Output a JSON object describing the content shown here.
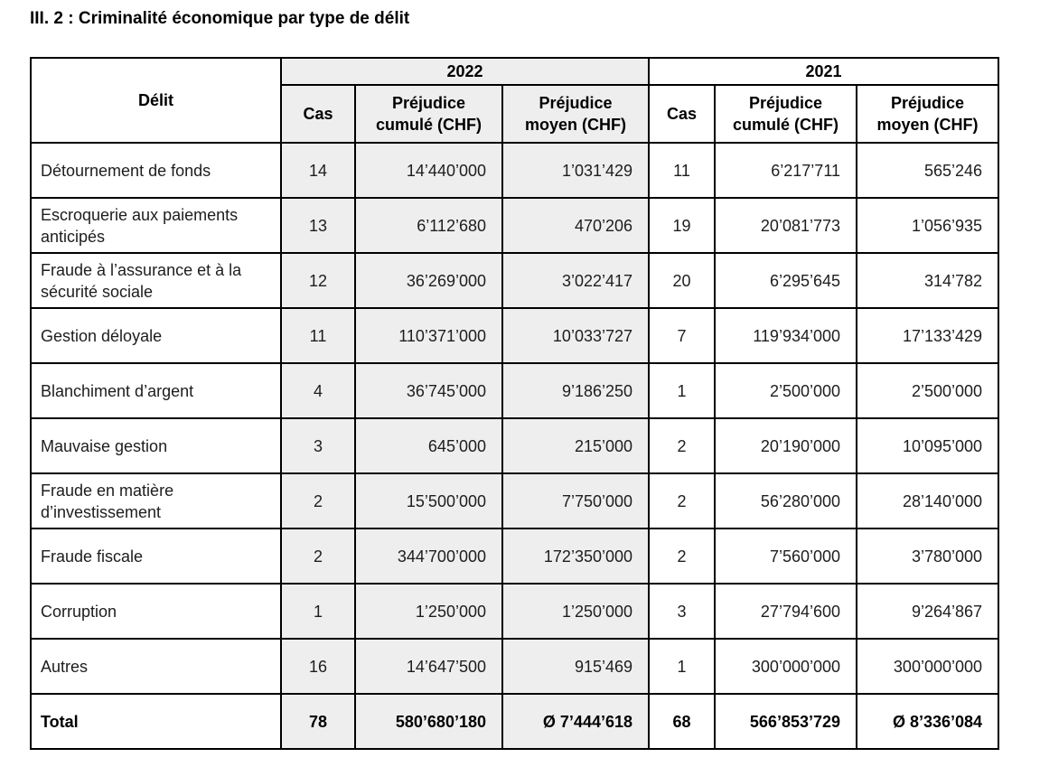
{
  "page": {
    "title": "III. 2 : Criminalité économique par type de délit"
  },
  "colors": {
    "shade": "#eeeeee",
    "border": "#000000",
    "text": "#1d1d1d"
  },
  "table": {
    "corner_header": "Délit",
    "groups": [
      {
        "year": "2022",
        "shaded": true,
        "subcolumns": [
          "Cas",
          "Préjudice cumulé (CHF)",
          "Préjudice moyen (CHF)"
        ]
      },
      {
        "year": "2021",
        "shaded": false,
        "subcolumns": [
          "Cas",
          "Préjudice cumulé (CHF)",
          "Préjudice moyen (CHF)"
        ]
      }
    ],
    "rows": [
      {
        "delit": "Détournement de fonds",
        "bold": false,
        "values": [
          "14",
          "14’440’000",
          "1’031’429",
          "11",
          "6’217’711",
          "565’246"
        ]
      },
      {
        "delit": "Escroquerie aux paiements anticipés",
        "bold": false,
        "values": [
          "13",
          "6’112’680",
          "470’206",
          "19",
          "20’081’773",
          "1’056’935"
        ]
      },
      {
        "delit": "Fraude à l’assurance et à la sécurité sociale",
        "bold": false,
        "values": [
          "12",
          "36’269’000",
          "3’022’417",
          "20",
          "6’295’645",
          "314’782"
        ]
      },
      {
        "delit": "Gestion déloyale",
        "bold": false,
        "values": [
          "11",
          "110’371’000",
          "10’033’727",
          "7",
          "119’934’000",
          "17’133’429"
        ]
      },
      {
        "delit": "Blanchiment d’argent",
        "bold": false,
        "values": [
          "4",
          "36’745’000",
          "9’186’250",
          "1",
          "2’500’000",
          "2’500’000"
        ]
      },
      {
        "delit": "Mauvaise gestion",
        "bold": false,
        "values": [
          "3",
          "645’000",
          "215’000",
          "2",
          "20’190’000",
          "10’095’000"
        ]
      },
      {
        "delit": "Fraude en matière d’investissement",
        "bold": false,
        "values": [
          "2",
          "15’500’000",
          "7’750’000",
          "2",
          "56’280’000",
          "28’140’000"
        ]
      },
      {
        "delit": "Fraude fiscale",
        "bold": false,
        "values": [
          "2",
          "344’700’000",
          "172’350’000",
          "2",
          "7’560’000",
          "3’780’000"
        ]
      },
      {
        "delit": "Corruption",
        "bold": false,
        "values": [
          "1",
          "1’250’000",
          "1’250’000",
          "3",
          "27’794’600",
          "9’264’867"
        ]
      },
      {
        "delit": "Autres",
        "bold": false,
        "values": [
          "16",
          "14’647’500",
          "915’469",
          "1",
          "300’000’000",
          "300’000’000"
        ]
      },
      {
        "delit": "Total",
        "bold": true,
        "values": [
          "78",
          "580’680’180",
          "Ø 7’444’618",
          "68",
          "566’853’729",
          "Ø 8’336’084"
        ]
      }
    ]
  }
}
